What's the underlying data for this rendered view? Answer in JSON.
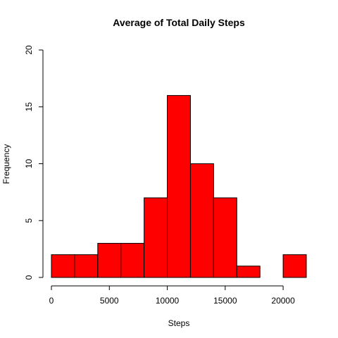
{
  "chart_data": {
    "type": "bar",
    "title": "Average of Total Daily Steps",
    "xlabel": "Steps",
    "ylabel": "Frequency",
    "bin_edges": [
      0,
      2000,
      4000,
      6000,
      8000,
      10000,
      12000,
      14000,
      16000,
      18000,
      20000,
      22000
    ],
    "values": [
      2,
      2,
      3,
      3,
      7,
      16,
      10,
      7,
      1,
      0,
      2
    ],
    "xticks": [
      0,
      5000,
      10000,
      15000,
      20000
    ],
    "yticks": [
      0,
      5,
      10,
      15,
      20
    ],
    "xlim": [
      0,
      22000
    ],
    "ylim": [
      0,
      20
    ],
    "bar_color": "#ff0000",
    "grid": false
  }
}
